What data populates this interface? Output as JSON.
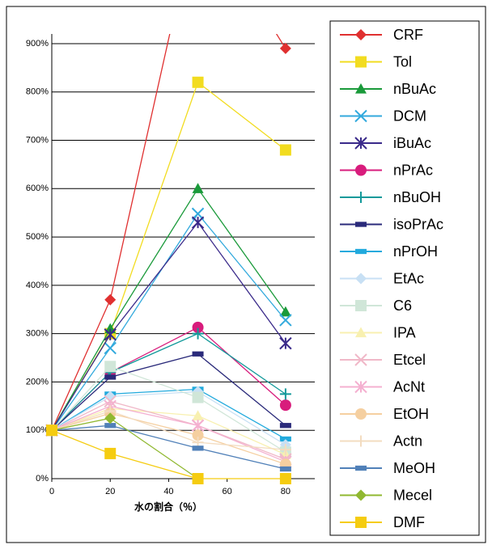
{
  "chart_data": {
    "type": "line",
    "x_label": "水の割合（％）",
    "x": [
      0,
      20,
      50,
      80
    ],
    "xlim": [
      0,
      90
    ],
    "xticks": [
      0,
      20,
      40,
      60,
      80
    ],
    "ylim": [
      0,
      920
    ],
    "yticks": [
      {
        "value": 0,
        "label": "0%"
      },
      {
        "value": 100,
        "label": "100%"
      },
      {
        "value": 200,
        "label": "200%"
      },
      {
        "value": 300,
        "label": "300%"
      },
      {
        "value": 400,
        "label": "400%"
      },
      {
        "value": 500,
        "label": "500%"
      },
      {
        "value": 600,
        "label": "600%"
      },
      {
        "value": 700,
        "label": "700%"
      },
      {
        "value": 800,
        "label": "800%"
      },
      {
        "value": 900,
        "label": "900%"
      }
    ],
    "grid": true,
    "legend": "right",
    "series": [
      {
        "name": "CRF",
        "color": "#e03030",
        "marker": "diamond",
        "values": [
          100,
          370,
          1180,
          890
        ]
      },
      {
        "name": "Tol",
        "color": "#f2dc20",
        "marker": "square",
        "values": [
          100,
          300,
          820,
          680
        ]
      },
      {
        "name": "nBuAc",
        "color": "#1a9a3a",
        "marker": "triangle",
        "values": [
          100,
          310,
          600,
          345
        ]
      },
      {
        "name": "DCM",
        "color": "#33aadd",
        "marker": "x",
        "values": [
          100,
          270,
          548,
          328
        ]
      },
      {
        "name": "iBuAc",
        "color": "#3a2a8a",
        "marker": "asterisk",
        "values": [
          100,
          298,
          530,
          280
        ]
      },
      {
        "name": "nPrAc",
        "color": "#d81c7c",
        "marker": "circle",
        "values": [
          100,
          220,
          313,
          152
        ]
      },
      {
        "name": "nBuOH",
        "color": "#12999a",
        "marker": "plus",
        "values": [
          100,
          220,
          300,
          175
        ]
      },
      {
        "name": "isoPrAc",
        "color": "#2a2a7a",
        "marker": "dash",
        "values": [
          100,
          210,
          258,
          110
        ]
      },
      {
        "name": "nPrOH",
        "color": "#22aadd",
        "marker": "dash",
        "values": [
          100,
          175,
          185,
          82
        ]
      },
      {
        "name": "EtAc",
        "color": "#c8e0f4",
        "marker": "diamond",
        "values": [
          100,
          170,
          180,
          70
        ]
      },
      {
        "name": "C6",
        "color": "#d0e6d8",
        "marker": "square",
        "values": [
          100,
          232,
          168,
          55
        ]
      },
      {
        "name": "IPA",
        "color": "#f8f0b0",
        "marker": "triangle",
        "values": [
          100,
          145,
          130,
          50
        ]
      },
      {
        "name": "Etcel",
        "color": "#f0b8c8",
        "marker": "x",
        "values": [
          100,
          160,
          110,
          40
        ]
      },
      {
        "name": "AcNt",
        "color": "#f4b0d0",
        "marker": "asterisk",
        "values": [
          100,
          150,
          110,
          35
        ]
      },
      {
        "name": "EtOH",
        "color": "#f5cfa0",
        "marker": "circle",
        "values": [
          100,
          135,
          90,
          30
        ]
      },
      {
        "name": "Actn",
        "color": "#f3dcc0",
        "marker": "plus",
        "values": [
          100,
          140,
          75,
          60
        ]
      },
      {
        "name": "MeOH",
        "color": "#5080b8",
        "marker": "dash",
        "values": [
          100,
          110,
          63,
          20
        ]
      },
      {
        "name": "Mecel",
        "color": "#90b830",
        "marker": "diamond",
        "values": [
          100,
          125,
          0,
          null
        ]
      },
      {
        "name": "DMF",
        "color": "#f5cc10",
        "marker": "square",
        "values": [
          100,
          52,
          0,
          0
        ]
      }
    ]
  }
}
